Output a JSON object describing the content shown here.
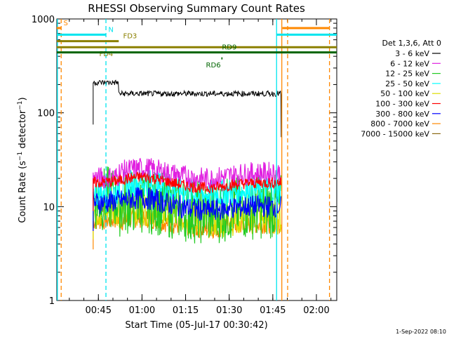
{
  "chart_data": {
    "type": "line",
    "title": "RHESSI Observing Summary Count Rates",
    "xlabel": "Start Time (05-Jul-17 00:30:42)",
    "ylabel": "Count Rate (s⁻¹ detector⁻¹)",
    "ylabel_base": "Count Rate (s",
    "ylabel_sup1": "−1",
    "ylabel_mid": " detector",
    "ylabel_sup2": "−1",
    "ylabel_end": ")",
    "yscale": "log",
    "ylim": [
      1,
      1000
    ],
    "xlim_minutes": [
      30.7,
      127
    ],
    "x_ticks": [
      {
        "label": "00:45",
        "minutes": 45
      },
      {
        "label": "01:00",
        "minutes": 60
      },
      {
        "label": "01:15",
        "minutes": 75
      },
      {
        "label": "01:30",
        "minutes": 90
      },
      {
        "label": "01:45",
        "minutes": 105
      },
      {
        "label": "02:00",
        "minutes": 120
      }
    ],
    "y_ticks": [
      {
        "label": "1",
        "value": 1
      },
      {
        "label": "10",
        "value": 10
      },
      {
        "label": "100",
        "value": 100
      },
      {
        "label": "1000",
        "value": 1000
      }
    ],
    "legend_title": "Det 1,3,6, Att 0",
    "legend_position": "right",
    "series": [
      {
        "name": "3 - 6 keV",
        "color": "#000000",
        "level_start": 210,
        "level_mid": 160,
        "level_end": 160,
        "start": 43.2,
        "end": 107.9,
        "noise": 0.03
      },
      {
        "name": "6 - 12 keV",
        "color": "#e020e0",
        "level_start": 20,
        "level_mid": 22,
        "level_end": 23,
        "start": 43.2,
        "end": 107.9,
        "noise": 0.12
      },
      {
        "name": "12 - 25 keV",
        "color": "#22cc22",
        "level_start": 12,
        "level_mid": 10,
        "level_end": 10,
        "start": 43.2,
        "end": 107.9,
        "noise": 0.35
      },
      {
        "name": "25 - 50 keV",
        "color": "#00ffff",
        "level_start": 14,
        "level_mid": 16,
        "level_end": 15,
        "start": 43.2,
        "end": 107.9,
        "noise": 0.15
      },
      {
        "name": "50 - 100 keV",
        "color": "#dddd00",
        "level_start": 9,
        "level_mid": 8.5,
        "level_end": 7.5,
        "start": 43.2,
        "end": 107.9,
        "noise": 0.18
      },
      {
        "name": "100 - 300 keV",
        "color": "#ff0000",
        "level_start": 18,
        "level_mid": 18,
        "level_end": 18,
        "start": 43.2,
        "end": 107.9,
        "noise": 0.06
      },
      {
        "name": "300 - 800 keV",
        "color": "#0000ff",
        "level_start": 11,
        "level_mid": 11,
        "level_end": 10,
        "start": 43.2,
        "end": 107.9,
        "noise": 0.12
      },
      {
        "name": "800 - 7000 keV",
        "color": "#ff8800",
        "level_start": 7,
        "level_mid": 6.5,
        "level_end": 6.5,
        "start": 43.2,
        "end": 107.9,
        "noise": 0.1
      },
      {
        "name": "7000 - 15000 keV",
        "color": "#8b6914",
        "level_start": null,
        "level_mid": null,
        "level_end": null,
        "start": null,
        "end": null,
        "noise": 0
      }
    ],
    "flag_bars": [
      {
        "label": "S",
        "color": "#ff8800",
        "y": 800,
        "x_start": 30.7,
        "x_end": 32.2,
        "label_minutes": 33
      },
      {
        "label": "N",
        "color": "#00e5ee",
        "y": 680,
        "x_start": 30.7,
        "x_end": 47.5,
        "label_minutes": 48.4
      },
      {
        "label": "FD3",
        "color": "#8b8000",
        "y": 580,
        "x_start": 30.7,
        "x_end": 52,
        "label_minutes": 53.5
      },
      {
        "label": "FD4",
        "color": "#8b8000",
        "y": 500,
        "x_start": 30.7,
        "x_end": 127,
        "label_minutes": 45.3
      },
      {
        "label": "RD9",
        "color": "#006400",
        "y": 440,
        "x_start": 30.7,
        "x_end": 127,
        "label_minutes": 87.5
      },
      {
        "label": "RD6",
        "color": "#006400",
        "y": 380,
        "x_start": 87.3,
        "x_end": 87.7,
        "label_minutes": 82
      }
    ],
    "extra_bars": [
      {
        "color": "#00e5ee",
        "y": 680,
        "x_start": 106.3,
        "x_end": 127
      },
      {
        "color": "#ff8800",
        "y": 800,
        "x_start": 108.3,
        "x_end": 124.5
      }
    ],
    "vertical_markers": [
      {
        "color": "#00e5ee",
        "style": "solid",
        "minutes": 30.9
      },
      {
        "color": "#ff8800",
        "style": "dashed",
        "minutes": 32.2
      },
      {
        "color": "#00e5ee",
        "style": "dashed",
        "minutes": 47.6
      },
      {
        "color": "#00e5ee",
        "style": "solid",
        "minutes": 106.3
      },
      {
        "color": "#ff8800",
        "style": "solid",
        "minutes": 108.1
      },
      {
        "color": "#ff8800",
        "style": "dashed",
        "minutes": 110.1
      },
      {
        "color": "#ff8800",
        "style": "dashed",
        "minutes": 124.5
      }
    ],
    "timestamp": "1-Sep-2022 08:10"
  }
}
